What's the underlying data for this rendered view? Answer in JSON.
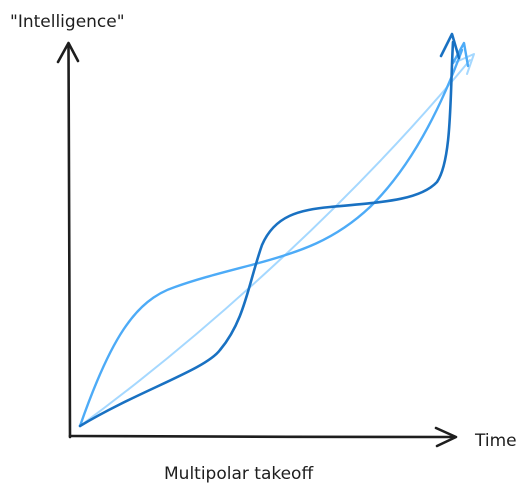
{
  "diagram": {
    "y_axis_label": "\"Intelligence\"",
    "x_axis_label": "Time",
    "caption": "Multipolar takeoff",
    "curves": [
      {
        "id": "steep-s-curve",
        "color": "#1971c2"
      },
      {
        "id": "gentle-s-curve",
        "color": "#4dabf7"
      },
      {
        "id": "linear-curve",
        "color": "#a5d8ff"
      }
    ]
  }
}
